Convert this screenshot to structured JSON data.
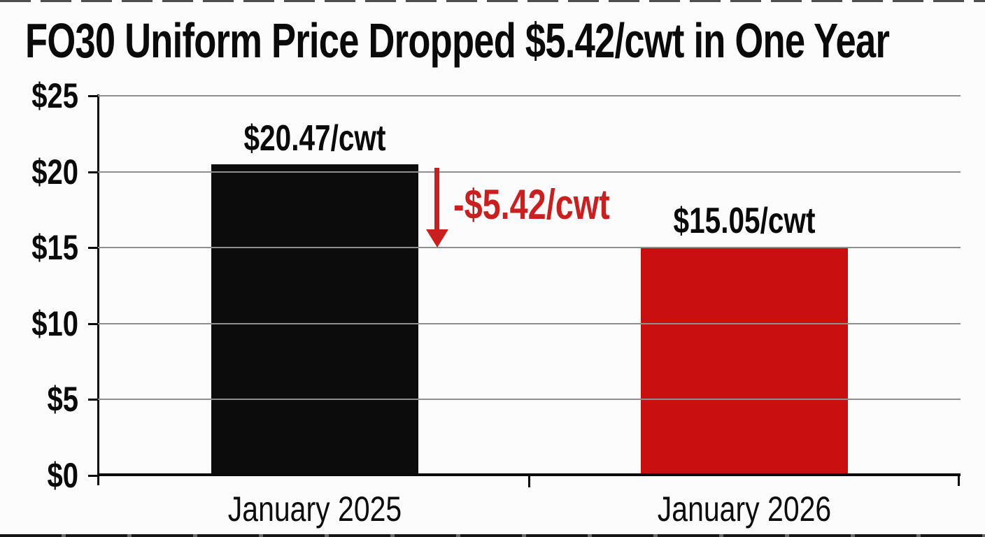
{
  "chart_data": {
    "type": "bar",
    "title": "FO30 Uniform Price Dropped $5.42/cwt in One Year",
    "categories": [
      "January 2025",
      "January 2026"
    ],
    "values": [
      20.47,
      15.05
    ],
    "bar_labels": [
      "$20.47/cwt",
      "$15.05/cwt"
    ],
    "bar_colors": [
      "#0c0c0c",
      "#c90f0f"
    ],
    "xlabel": "",
    "ylabel": "",
    "ylim": [
      0,
      25
    ],
    "ytick_step": 5,
    "ytick_labels": [
      "$0",
      "$5",
      "$10",
      "$15",
      "$20",
      "$25"
    ],
    "grid": true,
    "legend": "none",
    "annotation": {
      "text": "-$5.42/cwt",
      "color": "#cb1f1f",
      "arrow_direction": "down"
    }
  },
  "colors": {
    "background": "#fcfcfc",
    "gridline": "#8f8f8f",
    "axis": "#0a0a0a",
    "bar_black": "#0c0c0c",
    "bar_red": "#c90f0f",
    "annotation_red": "#cb1f1f"
  }
}
